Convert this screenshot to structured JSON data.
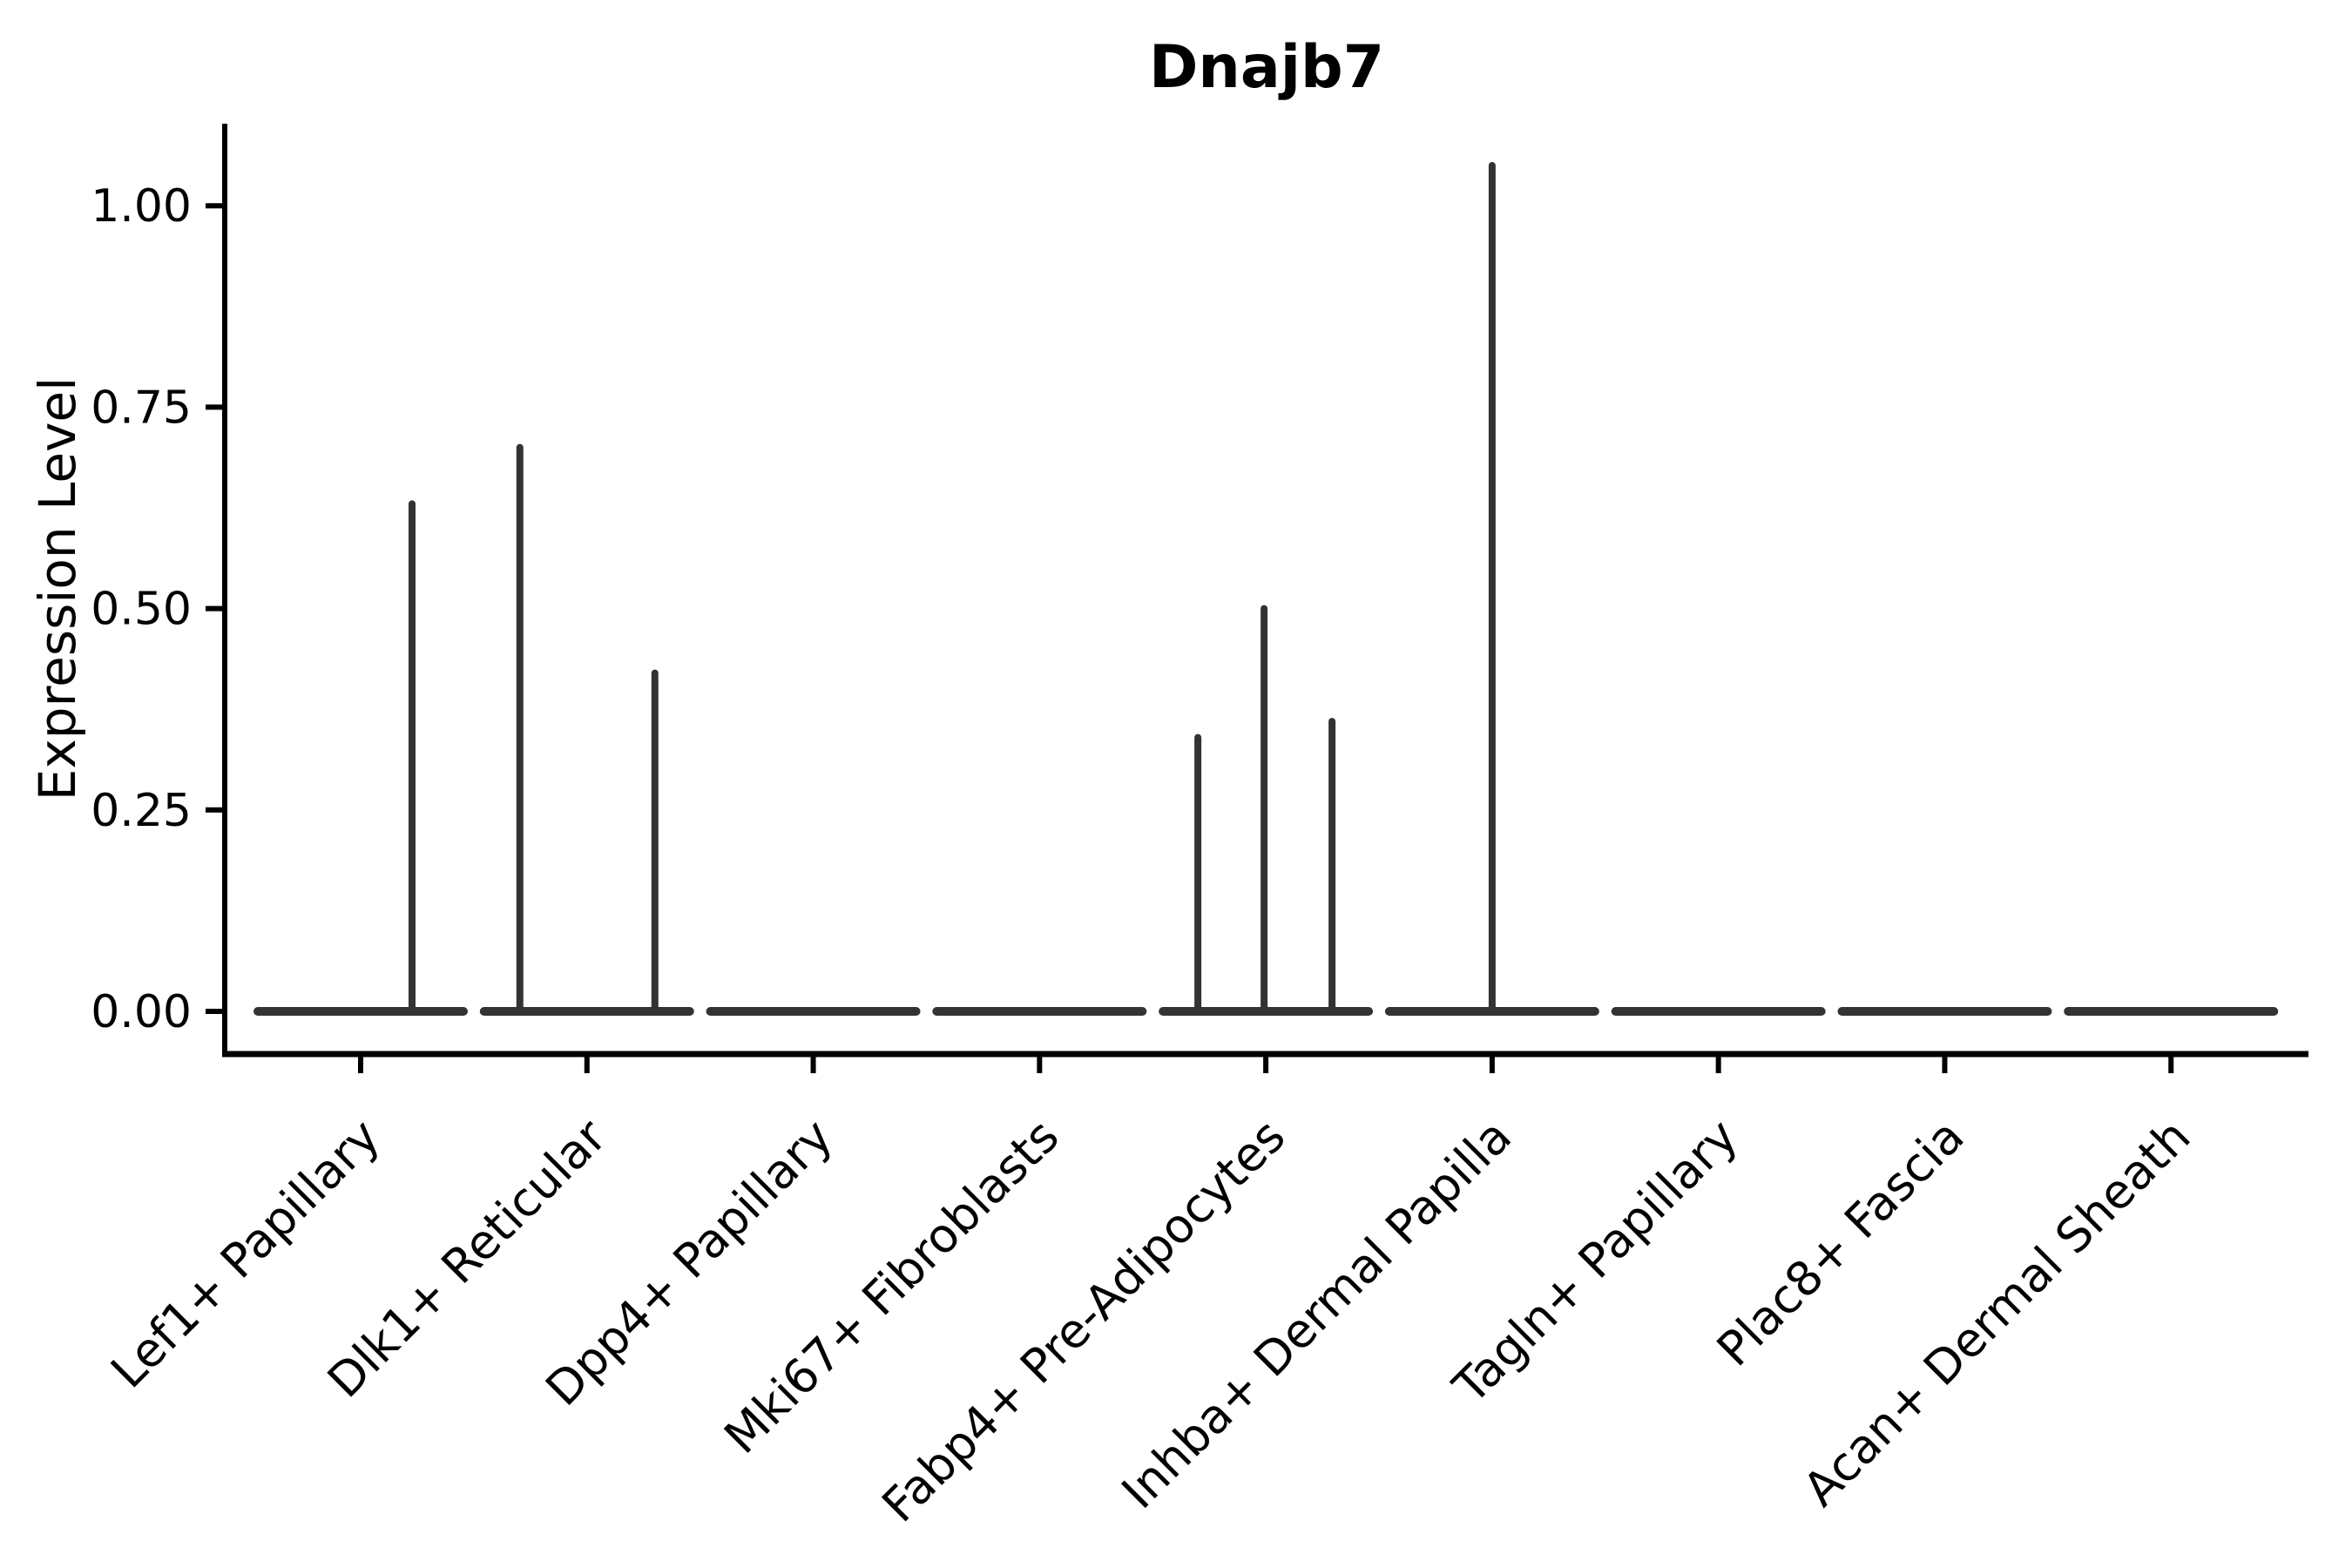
{
  "chart_data": {
    "type": "violin",
    "title": "Dnajb7",
    "ylabel": "Expression Level",
    "xlabel": "",
    "grid": false,
    "legend_position": "none",
    "ylim": [
      -0.05,
      1.09
    ],
    "y_ticks": [
      {
        "value": 0.0,
        "label": "0.00"
      },
      {
        "value": 0.25,
        "label": "0.25"
      },
      {
        "value": 0.5,
        "label": "0.50"
      },
      {
        "value": 0.75,
        "label": "0.75"
      },
      {
        "value": 1.0,
        "label": "1.00"
      }
    ],
    "categories": [
      "Lef1+ Papillary",
      "Dlk1+ Reticular",
      "Dpp4+ Papillary",
      "Mki67+ Fibroblasts",
      "Fabp4+ Pre-Adipocytes",
      "Inhba+ Dermal Papilla",
      "Tagln+ Papillary",
      "Plac8+ Fascia",
      "Acan+ Dermal Sheath"
    ],
    "violins": [
      {
        "category": "Lef1+ Papillary",
        "baseline_value": 0,
        "spikes": [
          {
            "x_offset": 59,
            "value": 0.63
          }
        ]
      },
      {
        "category": "Dlk1+ Reticular",
        "baseline_value": 0,
        "spikes": [
          {
            "x_offset": -77,
            "value": 0.7
          },
          {
            "x_offset": 78,
            "value": 0.42
          }
        ]
      },
      {
        "category": "Dpp4+ Papillary",
        "baseline_value": 0,
        "spikes": []
      },
      {
        "category": "Mki67+ Fibroblasts",
        "baseline_value": 0,
        "spikes": []
      },
      {
        "category": "Fabp4+ Pre-Adipocytes",
        "baseline_value": 0,
        "spikes": [
          {
            "x_offset": -78,
            "value": 0.34
          },
          {
            "x_offset": -2,
            "value": 0.5
          },
          {
            "x_offset": 76,
            "value": 0.36
          }
        ]
      },
      {
        "category": "Inhba+ Dermal Papilla",
        "baseline_value": 0,
        "spikes": [
          {
            "x_offset": 0,
            "value": 1.05
          }
        ]
      },
      {
        "category": "Tagln+ Papillary",
        "baseline_value": 0,
        "spikes": []
      },
      {
        "category": "Plac8+ Fascia",
        "baseline_value": 0,
        "spikes": []
      },
      {
        "category": "Acan+ Dermal Sheath",
        "baseline_value": 0,
        "spikes": []
      }
    ],
    "style": {
      "violin_stroke": "#333333",
      "axis_color": "#000000",
      "text_color": "#000000",
      "background": "#ffffff"
    }
  }
}
